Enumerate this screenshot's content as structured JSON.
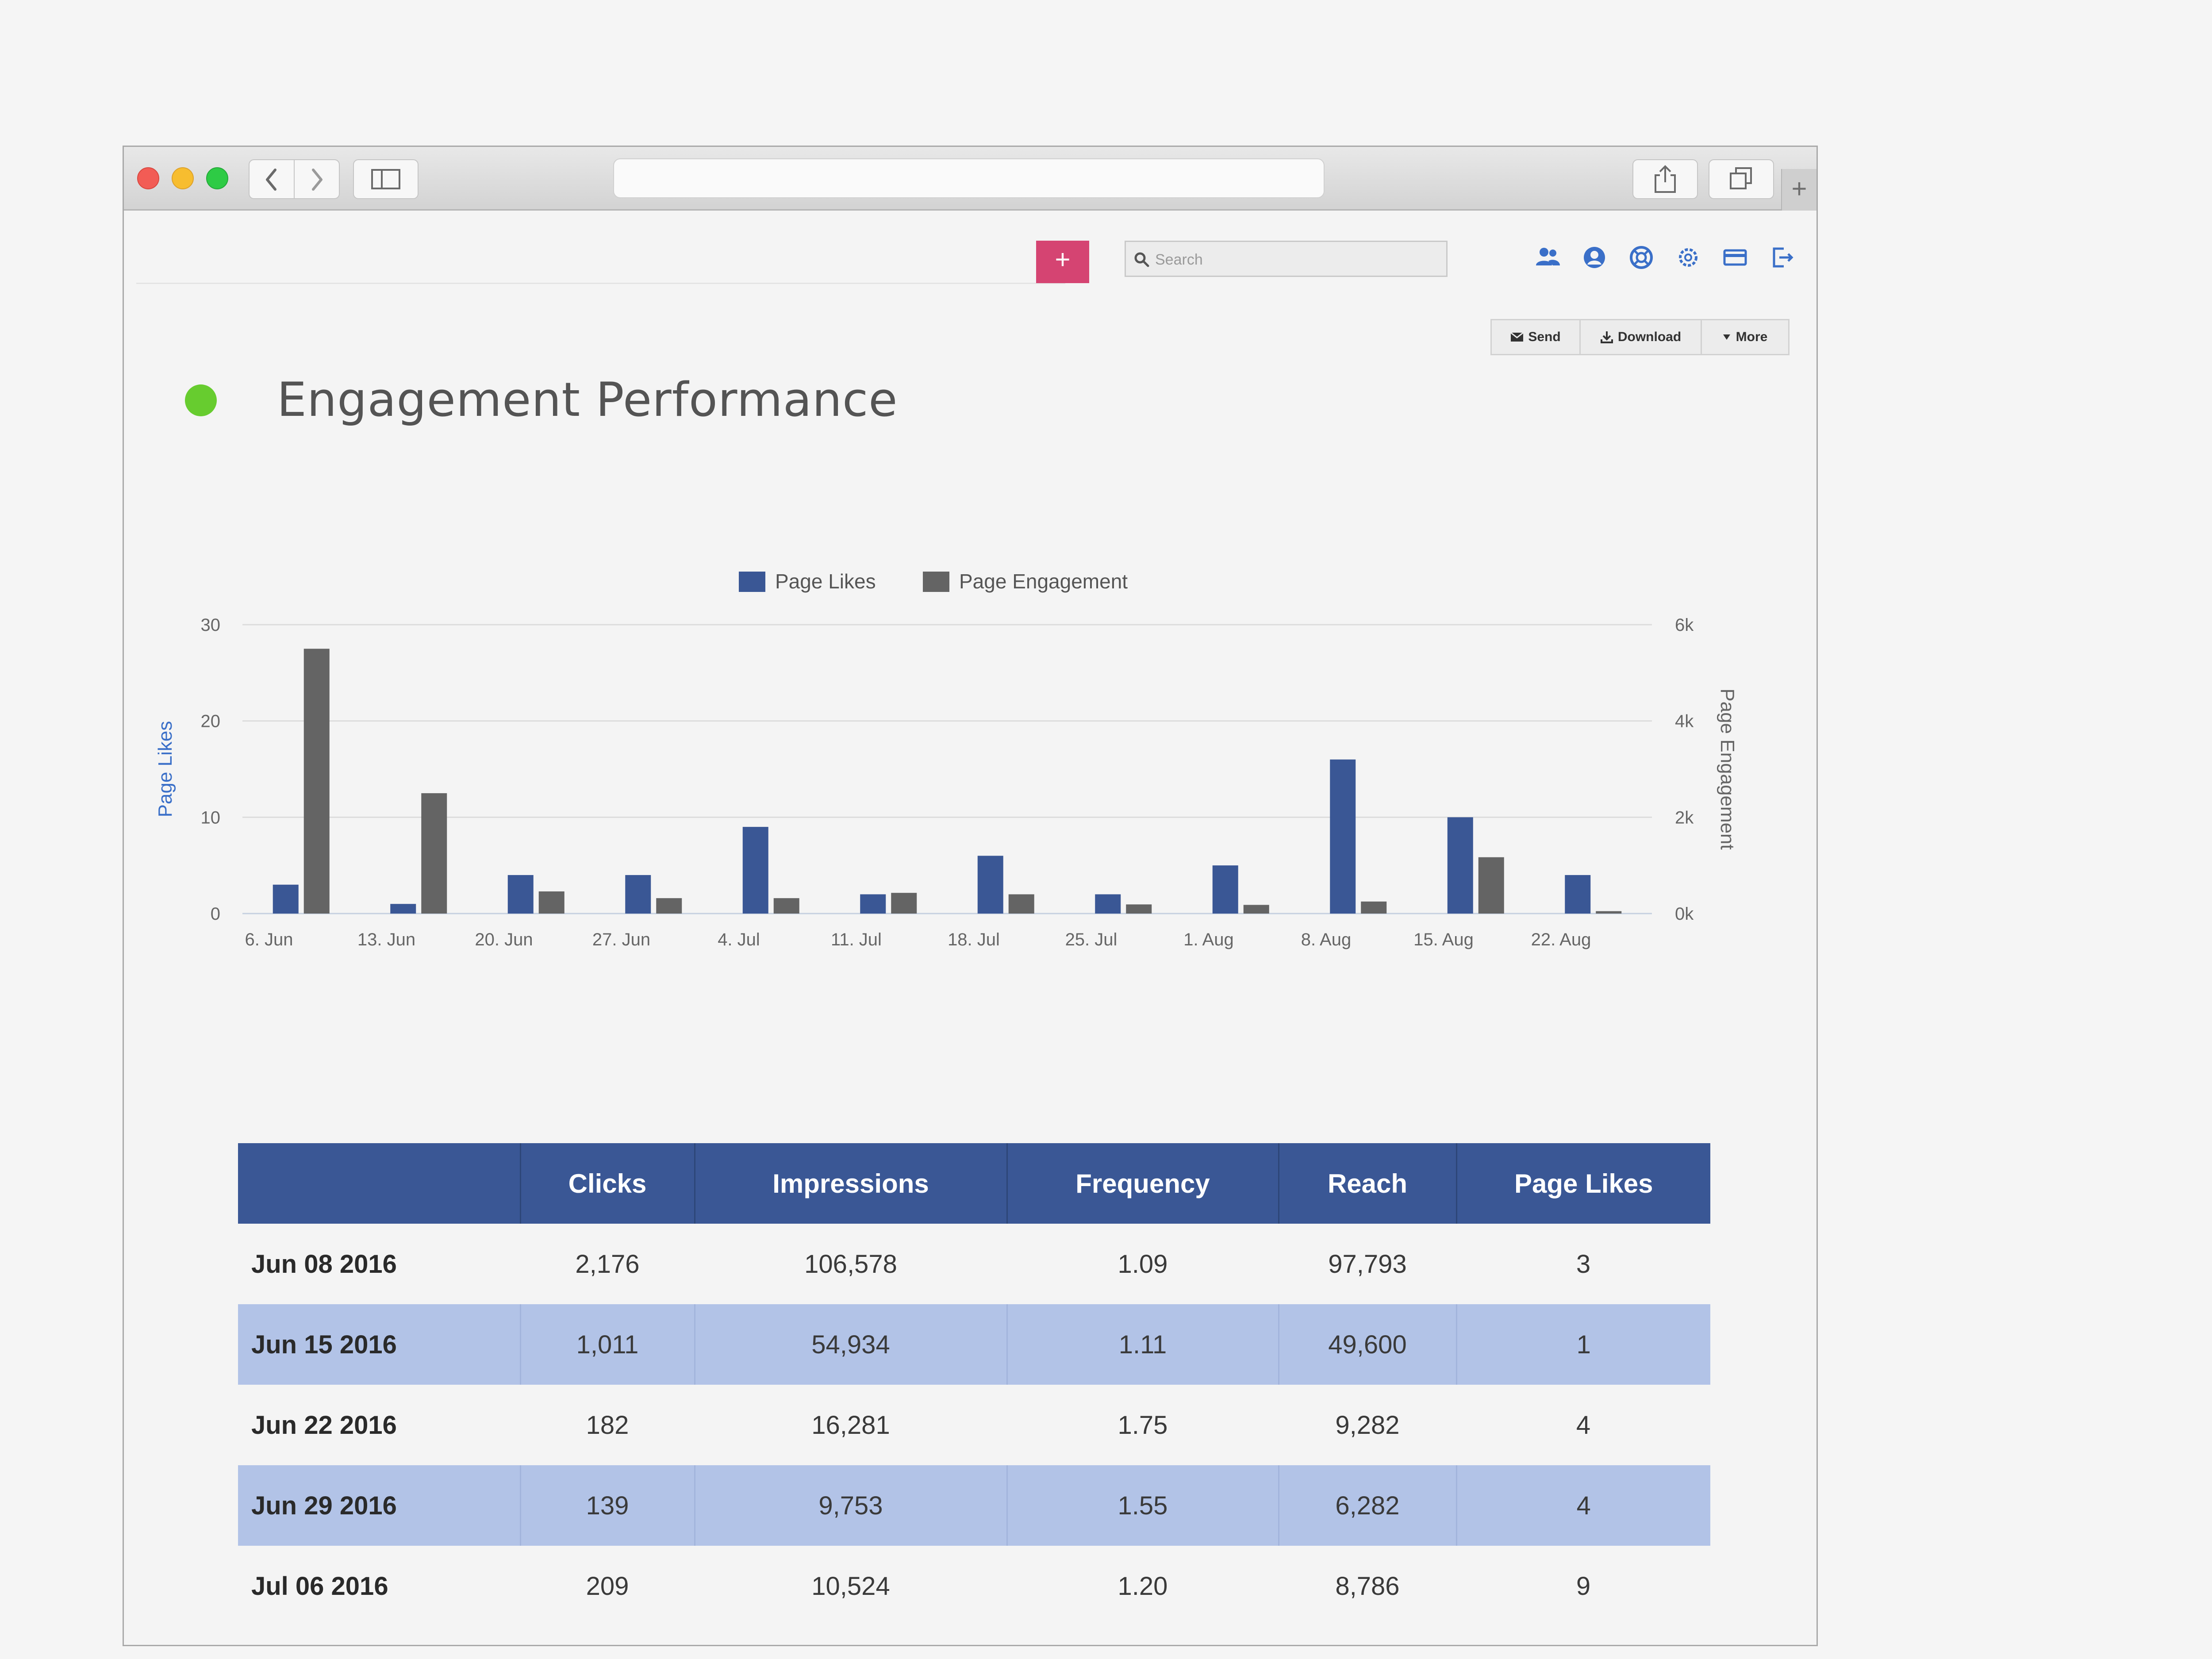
{
  "browser": {
    "address": "",
    "new_tab_label": "+"
  },
  "toolbar": {
    "add_label": "+",
    "search_placeholder": "Search",
    "icons": [
      "users-icon",
      "account-icon",
      "help-icon",
      "settings-icon",
      "billing-icon",
      "logout-icon"
    ]
  },
  "actions": {
    "send": "Send",
    "download": "Download",
    "more": "More"
  },
  "page": {
    "title": "Engagement Performance",
    "status_color": "#67cc2f"
  },
  "chart_data": {
    "type": "bar",
    "categories": [
      "6. Jun",
      "13. Jun",
      "20. Jun",
      "27. Jun",
      "4. Jul",
      "11. Jul",
      "18. Jul",
      "25. Jul",
      "1. Aug",
      "8. Aug",
      "15. Aug",
      "22. Aug"
    ],
    "series": [
      {
        "name": "Page Likes",
        "axis": "left",
        "color": "#3a5795",
        "values": [
          3,
          1,
          4,
          4,
          9,
          2,
          6,
          2,
          5,
          16,
          10,
          4
        ]
      },
      {
        "name": "Page Engagement",
        "axis": "right",
        "color": "#646464",
        "values": [
          5500,
          2500,
          460,
          320,
          320,
          430,
          400,
          190,
          180,
          250,
          1170,
          50
        ]
      }
    ],
    "ylabel": "Page Likes",
    "y2label": "Page Engagement",
    "ylim": [
      0,
      30
    ],
    "y2lim": [
      0,
      6000
    ],
    "yticks": [
      "0",
      "10",
      "20",
      "30"
    ],
    "y2ticks": [
      "0k",
      "2k",
      "4k",
      "6k"
    ],
    "legend": "top-center",
    "grid": true
  },
  "table": {
    "headers": [
      "",
      "Clicks",
      "Impressions",
      "Frequency",
      "Reach",
      "Page Likes"
    ],
    "rows": [
      [
        "Jun 08 2016",
        "2,176",
        "106,578",
        "1.09",
        "97,793",
        "3"
      ],
      [
        "Jun 15 2016",
        "1,011",
        "54,934",
        "1.11",
        "49,600",
        "1"
      ],
      [
        "Jun 22 2016",
        "182",
        "16,281",
        "1.75",
        "9,282",
        "4"
      ],
      [
        "Jun 29 2016",
        "139",
        "9,753",
        "1.55",
        "6,282",
        "4"
      ],
      [
        "Jul 06 2016",
        "209",
        "10,524",
        "1.20",
        "8,786",
        "9"
      ]
    ]
  }
}
